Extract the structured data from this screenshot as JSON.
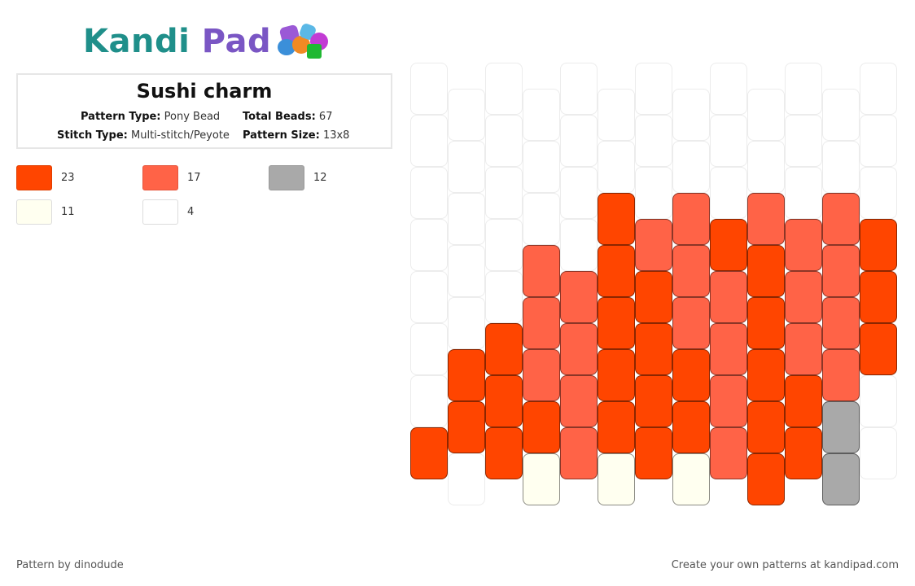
{
  "logo": {
    "text_part1": "Kandi",
    "text_part2": "Pad",
    "icon": "beads-logo-icon"
  },
  "pattern": {
    "title": "Sushi charm",
    "type_label": "Pattern Type:",
    "type_value": "Pony Bead",
    "beads_label": "Total Beads:",
    "beads_value": "67",
    "stitch_label": "Stitch Type:",
    "stitch_value": "Multi-stitch/Peyote",
    "size_label": "Pattern Size:",
    "size_value": "13x8"
  },
  "legend": [
    {
      "color": "#ff4500",
      "count": "23"
    },
    {
      "color": "#ff6347",
      "count": "17"
    },
    {
      "color": "#a9a9a9",
      "count": "12"
    },
    {
      "color": "#fffff0",
      "count": "11"
    },
    {
      "color": "#ffffff",
      "count": "4"
    }
  ],
  "footer": {
    "left": "Pattern by dinodude",
    "right": "Create your own patterns at kandipad.com"
  }
}
